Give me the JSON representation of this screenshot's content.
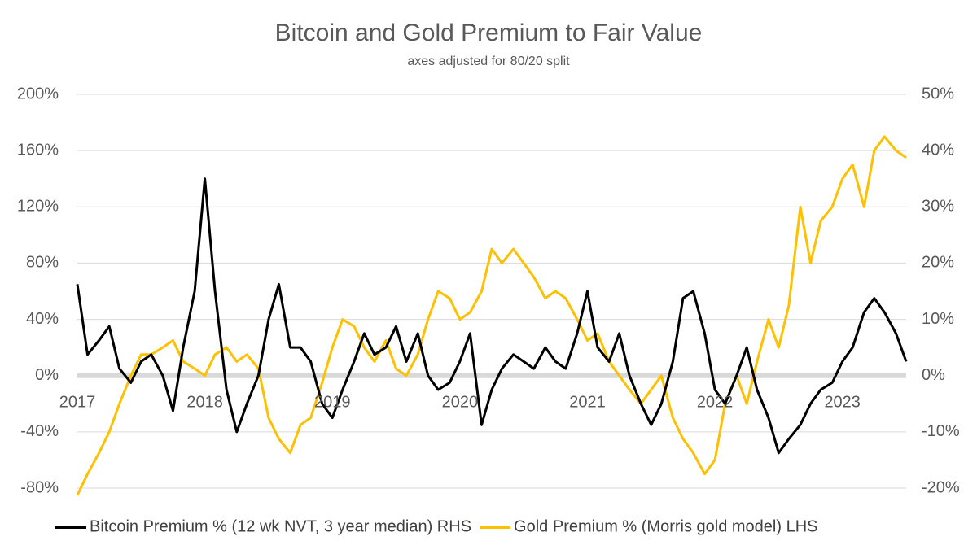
{
  "chart_data": {
    "type": "line",
    "title": "Bitcoin and Gold Premium to Fair Value",
    "subtitle": "axes adjusted for 80/20 split",
    "x": [
      2017,
      2017.08,
      2017.17,
      2017.25,
      2017.33,
      2017.42,
      2017.5,
      2017.58,
      2017.67,
      2017.75,
      2017.83,
      2017.92,
      2018,
      2018.08,
      2018.17,
      2018.25,
      2018.33,
      2018.42,
      2018.5,
      2018.58,
      2018.67,
      2018.75,
      2018.83,
      2018.92,
      2019,
      2019.08,
      2019.17,
      2019.25,
      2019.33,
      2019.42,
      2019.5,
      2019.58,
      2019.67,
      2019.75,
      2019.83,
      2019.92,
      2020,
      2020.08,
      2020.17,
      2020.25,
      2020.33,
      2020.42,
      2020.5,
      2020.58,
      2020.67,
      2020.75,
      2020.83,
      2020.92,
      2021,
      2021.08,
      2021.17,
      2021.25,
      2021.33,
      2021.42,
      2021.5,
      2021.58,
      2021.67,
      2021.75,
      2021.83,
      2021.92,
      2022,
      2022.08,
      2022.17,
      2022.25,
      2022.33,
      2022.42,
      2022.5,
      2022.58,
      2022.67,
      2022.75,
      2022.83,
      2022.92,
      2023,
      2023.08,
      2023.17,
      2023.25,
      2023.33,
      2023.42,
      2023.5
    ],
    "series": [
      {
        "name": "Bitcoin Premium % (12 wk NVT, 3 year median) RHS",
        "color": "#000000",
        "axis": "y2",
        "values": [
          16.25,
          3.75,
          6.25,
          8.75,
          1.25,
          -1.25,
          2.5,
          3.75,
          0,
          -6.25,
          5,
          15,
          35,
          15,
          -2.5,
          -10,
          -5,
          0,
          10,
          16.25,
          5,
          5,
          2.5,
          -5,
          -7.5,
          -2.5,
          2.5,
          7.5,
          3.75,
          5,
          8.75,
          2.5,
          7.5,
          0,
          -2.5,
          -1.25,
          2.5,
          7.5,
          -8.75,
          -2.5,
          1.25,
          3.75,
          2.5,
          1.25,
          5,
          2.5,
          1.25,
          7.5,
          15,
          5,
          2.5,
          7.5,
          0,
          -5,
          -8.75,
          -5,
          2.5,
          13.75,
          15,
          7.5,
          -2.5,
          -5,
          0,
          5,
          -2.5,
          -7.5,
          -13.75,
          -11.25,
          -8.75,
          -5,
          -2.5,
          -1.25,
          2.5,
          5,
          11.25,
          13.75,
          11.25,
          7.5,
          2.5
        ]
      },
      {
        "name": "Gold Premium % (Morris gold model) LHS",
        "color": "#ffc000",
        "values": [
          -85,
          -70,
          -55,
          -40,
          -20,
          0,
          15,
          15,
          20,
          25,
          10,
          5,
          0,
          15,
          20,
          10,
          15,
          5,
          -30,
          -45,
          -55,
          -35,
          -30,
          -5,
          20,
          40,
          35,
          20,
          10,
          25,
          5,
          0,
          15,
          40,
          60,
          55,
          40,
          45,
          60,
          90,
          80,
          90,
          80,
          70,
          55,
          60,
          55,
          40,
          25,
          30,
          10,
          0,
          -10,
          -20,
          -10,
          0,
          -30,
          -45,
          -55,
          -70,
          -60,
          -20,
          0,
          -20,
          10,
          40,
          20,
          50,
          120,
          80,
          110,
          120,
          140,
          150,
          120,
          160,
          170,
          160,
          155
        ]
      }
    ],
    "xlim": [
      2017,
      2023.5
    ],
    "xticks": [
      2017,
      2018,
      2019,
      2020,
      2021,
      2022,
      2023
    ],
    "ylim": [
      -80,
      200
    ],
    "yticks": [
      {
        "value": -80,
        "label": "-80%"
      },
      {
        "value": -40,
        "label": "-40%"
      },
      {
        "value": 0,
        "label": "0%"
      },
      {
        "value": 40,
        "label": "40%"
      },
      {
        "value": 80,
        "label": "80%"
      },
      {
        "value": 120,
        "label": "120%"
      },
      {
        "value": 160,
        "label": "160%"
      },
      {
        "value": 200,
        "label": "200%"
      }
    ],
    "y2lim": [
      -20,
      50
    ],
    "y2ticks": [
      {
        "value": -20,
        "label": "-20%"
      },
      {
        "value": -10,
        "label": "-10%"
      },
      {
        "value": 0,
        "label": "0%"
      },
      {
        "value": 10,
        "label": "10%"
      },
      {
        "value": 20,
        "label": "20%"
      },
      {
        "value": 30,
        "label": "30%"
      },
      {
        "value": 40,
        "label": "40%"
      },
      {
        "value": 50,
        "label": "50%"
      }
    ],
    "grid": true,
    "legend": "bottom"
  }
}
